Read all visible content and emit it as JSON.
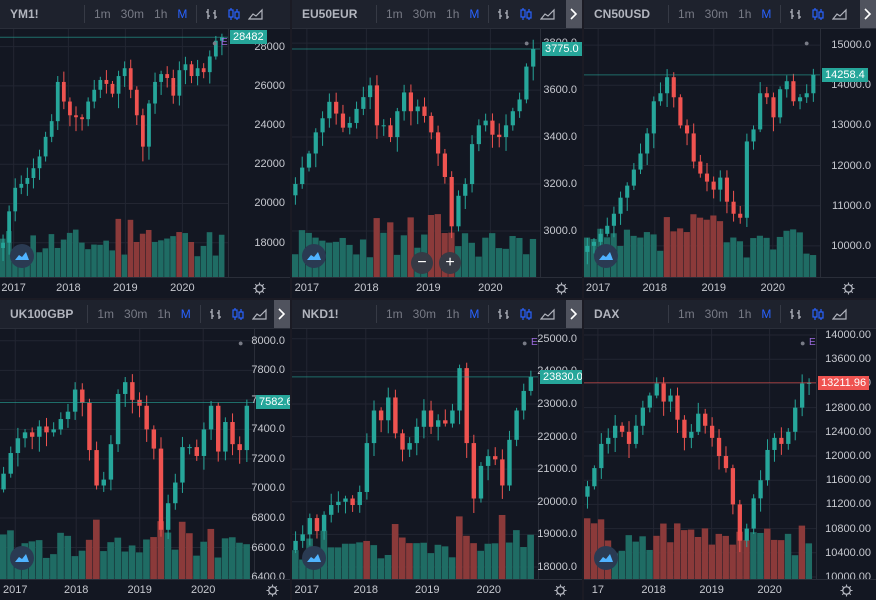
{
  "colors": {
    "up": "#26a69a",
    "down": "#ef5350",
    "vol_up": "#1f6c64",
    "vol_down": "#8b3a3a",
    "grid": "#232632",
    "price_line": "#2f6f66"
  },
  "toolbar": {
    "timeframes": [
      "1m",
      "30m",
      "1h",
      "M"
    ],
    "selected_timeframe": "M",
    "icons": [
      "bars-style-icon",
      "candles-style-icon",
      "area-style-icon"
    ]
  },
  "panes": [
    {
      "symbol": "YM1!",
      "price_label": "28482",
      "price_color": "#26a69a",
      "show_e": true,
      "yticks": [
        "28000",
        "26000",
        "24000",
        "22000",
        "20000",
        "18000"
      ],
      "xticks": [
        "2017",
        "2018",
        "2019",
        "2020"
      ],
      "range": [
        16200,
        28900
      ],
      "seed": 11,
      "series": [
        18000,
        19600,
        20800,
        21000,
        21300,
        21800,
        22400,
        23400,
        24200,
        26200,
        25200,
        24500,
        24400,
        24300,
        25200,
        25800,
        26300,
        26100,
        25600,
        26500,
        26900,
        25800,
        24500,
        22900,
        25100,
        26200,
        26600,
        26400,
        25500,
        26800,
        27100,
        26500,
        26900,
        26700,
        27500,
        28300,
        28482
      ],
      "vol_down_idx": [
        19,
        21,
        22,
        23,
        24,
        29,
        31
      ],
      "show_zoom": false
    },
    {
      "symbol": "EU50EUR",
      "price_label": "3775.0",
      "price_color": "#26a69a",
      "show_e": false,
      "yticks": [
        "3800.0",
        "3600.0",
        "3400.0",
        "3200.0",
        "3000.0"
      ],
      "xticks": [
        "2017",
        "2018",
        "2019",
        "2020"
      ],
      "range": [
        2800,
        3860
      ],
      "seed": 23,
      "series": [
        3200,
        3270,
        3330,
        3420,
        3480,
        3550,
        3500,
        3440,
        3460,
        3520,
        3570,
        3620,
        3450,
        3450,
        3400,
        3510,
        3590,
        3510,
        3530,
        3490,
        3420,
        3330,
        3230,
        3020,
        3150,
        3200,
        3370,
        3450,
        3470,
        3410,
        3400,
        3450,
        3510,
        3560,
        3700,
        3775
      ],
      "vol_down_idx": [
        12,
        14,
        17,
        20,
        21,
        22,
        23
      ],
      "show_zoom": true
    },
    {
      "symbol": "CN50USD",
      "price_label": "14258.4",
      "price_color": "#26a69a",
      "show_e": false,
      "yticks": [
        "15000.0",
        "14000.0",
        "13000.0",
        "12000.0",
        "11000.0",
        "10000.0"
      ],
      "xticks": [
        "2017",
        "2018",
        "2019",
        "2020"
      ],
      "range": [
        9200,
        15400
      ],
      "seed": 37,
      "series": [
        10000,
        10100,
        10300,
        10500,
        10800,
        11200,
        11500,
        11900,
        12300,
        12800,
        13600,
        13800,
        14200,
        13700,
        13000,
        12800,
        12100,
        11800,
        11600,
        11400,
        11700,
        11100,
        10800,
        10700,
        12600,
        12900,
        13800,
        13700,
        13200,
        13900,
        14100,
        13600,
        13700,
        13800,
        14258
      ],
      "vol_down_idx": [
        12,
        13,
        14,
        15,
        16,
        17,
        18,
        19,
        20
      ],
      "show_zoom": false
    },
    {
      "symbol": "UK100GBP",
      "price_label": "7582.6",
      "price_color": "#26a69a",
      "show_e": false,
      "yticks": [
        "8000.0",
        "7800.0",
        "7600.0",
        "7400.0",
        "7200.0",
        "7000.0",
        "6800.0",
        "6600.0",
        "6400.0"
      ],
      "xticks": [
        "2017",
        "2018",
        "2019",
        "2020"
      ],
      "range": [
        6380,
        8080
      ],
      "seed": 41,
      "series": [
        7100,
        7240,
        7340,
        7380,
        7350,
        7420,
        7380,
        7400,
        7470,
        7520,
        7670,
        7580,
        7260,
        7020,
        7060,
        7300,
        7640,
        7720,
        7600,
        7560,
        7400,
        7270,
        6720,
        6900,
        7040,
        7280,
        7280,
        7220,
        7400,
        7560,
        7250,
        7450,
        7300,
        7260,
        7560
      ],
      "vol_down_idx": [
        12,
        13,
        21,
        22,
        25,
        26,
        29
      ],
      "show_zoom": false
    },
    {
      "symbol": "NKD1!",
      "price_label": "23830.0",
      "price_color": "#26a69a",
      "show_e": true,
      "yticks": [
        "25000.0",
        "24000.0",
        "23000.0",
        "22000.0",
        "21000.0",
        "20000.0",
        "19000.0",
        "18000.0"
      ],
      "xticks": [
        "2017",
        "2018",
        "2019",
        "2020"
      ],
      "range": [
        17600,
        25300
      ],
      "seed": 53,
      "series": [
        18800,
        19000,
        19500,
        19100,
        19600,
        19900,
        20000,
        20100,
        19900,
        20300,
        21800,
        22800,
        22500,
        23200,
        22100,
        21600,
        21800,
        22300,
        22800,
        22300,
        22500,
        22400,
        22800,
        24100,
        21800,
        20100,
        21100,
        21400,
        21300,
        20500,
        21900,
        22800,
        23400,
        23830
      ],
      "vol_down_idx": [
        10,
        14,
        15,
        16,
        23,
        24,
        25,
        29
      ],
      "show_zoom": false
    },
    {
      "symbol": "DAX",
      "price_label": "13211.96",
      "price_color": "#ef5350",
      "show_e": true,
      "yticks": [
        "14000.00",
        "13600.00",
        "13200.00",
        "12800.00",
        "12400.00",
        "12000.00",
        "11600.00",
        "11200.00",
        "10800.00",
        "10400.00",
        "10000.00"
      ],
      "xticks": [
        "17",
        "2018",
        "2019",
        "2020"
      ],
      "range": [
        9950,
        14100
      ],
      "seed": 67,
      "series": [
        11500,
        11800,
        12200,
        12300,
        12500,
        12400,
        12200,
        12500,
        12800,
        13000,
        13200,
        12900,
        13000,
        12600,
        12300,
        12400,
        12700,
        12500,
        12300,
        12000,
        11800,
        11200,
        10600,
        10800,
        11300,
        11600,
        12100,
        12300,
        12200,
        12400,
        12800,
        13200,
        13211
      ],
      "vol_down_idx": [
        0,
        1,
        2,
        3,
        10,
        11,
        12,
        13,
        14,
        15,
        16,
        17,
        18,
        19,
        20,
        21,
        22,
        23,
        26,
        27,
        28,
        31
      ],
      "show_zoom": false
    }
  ]
}
